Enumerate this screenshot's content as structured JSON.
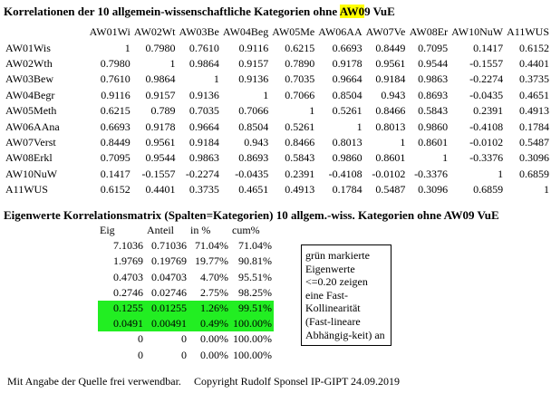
{
  "title_main_pre": "Korrelationen der 10 allgemein-wissenschaftliche Kategorien ohne ",
  "title_main_hl": "AW0",
  "title_main_post": "9 VuE",
  "corr": {
    "headers": [
      "AW01Wi",
      "AW02Wt",
      "AW03Be",
      "AW04Beg",
      "AW05Me",
      "AW06AA",
      "AW07Ve",
      "AW08Er",
      "AW10NuW",
      "A11WUS"
    ],
    "rows": [
      {
        "label": "AW01Wis",
        "values": [
          "1",
          "0.7980",
          "0.7610",
          "0.9116",
          "0.6215",
          "0.6693",
          "0.8449",
          "0.7095",
          "0.1417",
          "0.6152"
        ]
      },
      {
        "label": "AW02Wth",
        "values": [
          "0.7980",
          "1",
          "0.9864",
          "0.9157",
          "0.7890",
          "0.9178",
          "0.9561",
          "0.9544",
          "-0.1557",
          "0.4401"
        ]
      },
      {
        "label": "AW03Bew",
        "values": [
          "0.7610",
          "0.9864",
          "1",
          "0.9136",
          "0.7035",
          "0.9664",
          "0.9184",
          "0.9863",
          "-0.2274",
          "0.3735"
        ]
      },
      {
        "label": "AW04Begr",
        "values": [
          "0.9116",
          "0.9157",
          "0.9136",
          "1",
          "0.7066",
          "0.8504",
          "0.943",
          "0.8693",
          "-0.0435",
          "0.4651"
        ]
      },
      {
        "label": "AW05Meth",
        "values": [
          "0.6215",
          "0.789",
          "0.7035",
          "0.7066",
          "1",
          "0.5261",
          "0.8466",
          "0.5843",
          "0.2391",
          "0.4913"
        ]
      },
      {
        "label": "AW06AAna",
        "values": [
          "0.6693",
          "0.9178",
          "0.9664",
          "0.8504",
          "0.5261",
          "1",
          "0.8013",
          "0.9860",
          "-0.4108",
          "0.1784"
        ]
      },
      {
        "label": "AW07Verst",
        "values": [
          "0.8449",
          "0.9561",
          "0.9184",
          "0.943",
          "0.8466",
          "0.8013",
          "1",
          "0.8601",
          "-0.0102",
          "0.5487"
        ]
      },
      {
        "label": "AW08Erkl",
        "values": [
          "0.7095",
          "0.9544",
          "0.9863",
          "0.8693",
          "0.5843",
          "0.9860",
          "0.8601",
          "1",
          "-0.3376",
          "0.3096"
        ]
      },
      {
        "label": "AW10NuW",
        "values": [
          "0.1417",
          "-0.1557",
          "-0.2274",
          "-0.0435",
          "0.2391",
          "-0.4108",
          "-0.0102",
          "-0.3376",
          "1",
          "0.6859"
        ]
      },
      {
        "label": "A11WUS",
        "values": [
          "0.6152",
          "0.4401",
          "0.3735",
          "0.4651",
          "0.4913",
          "0.1784",
          "0.5487",
          "0.3096",
          "0.6859",
          "1"
        ]
      }
    ]
  },
  "title_eigen": "Eigenwerte Korrelationsmatrix (Spalten=Kategorien) 10 allgem.-wiss. Kategorien ohne AW09 VuE",
  "eigen": {
    "headers": [
      "Eig",
      "Anteil",
      "in %",
      "cum%"
    ],
    "rows": [
      {
        "values": [
          "7.1036",
          "0.71036",
          "71.04%",
          "71.04%"
        ],
        "highlight": false
      },
      {
        "values": [
          "1.9769",
          "0.19769",
          "19.77%",
          "90.81%"
        ],
        "highlight": false
      },
      {
        "values": [
          "0.4703",
          "0.04703",
          "4.70%",
          "95.51%"
        ],
        "highlight": false
      },
      {
        "values": [
          "0.2746",
          "0.02746",
          "2.75%",
          "98.25%"
        ],
        "highlight": false
      },
      {
        "values": [
          "0.1255",
          "0.01255",
          "1.26%",
          "99.51%"
        ],
        "highlight": true
      },
      {
        "values": [
          "0.0491",
          "0.00491",
          "0.49%",
          "100.00%"
        ],
        "highlight": true
      },
      {
        "values": [
          "0",
          "0",
          "0.00%",
          "100.00%"
        ],
        "highlight": false
      },
      {
        "values": [
          "0",
          "0",
          "0.00%",
          "100.00%"
        ],
        "highlight": false
      }
    ],
    "highlight_color": "#22ee22"
  },
  "note_text": "grün markierte Eigenwerte <=0.20 zeigen eine Fast-Kollinearität (Fast-lineare Abhängig-keit) an",
  "footer_left": "Mit Angabe der Quelle frei verwendbar.",
  "footer_right": "Copyright Rudolf Sponsel IP-GIPT 24.09.2019",
  "colors": {
    "title_highlight": "#ffff00",
    "eigen_highlight": "#22ee22"
  }
}
